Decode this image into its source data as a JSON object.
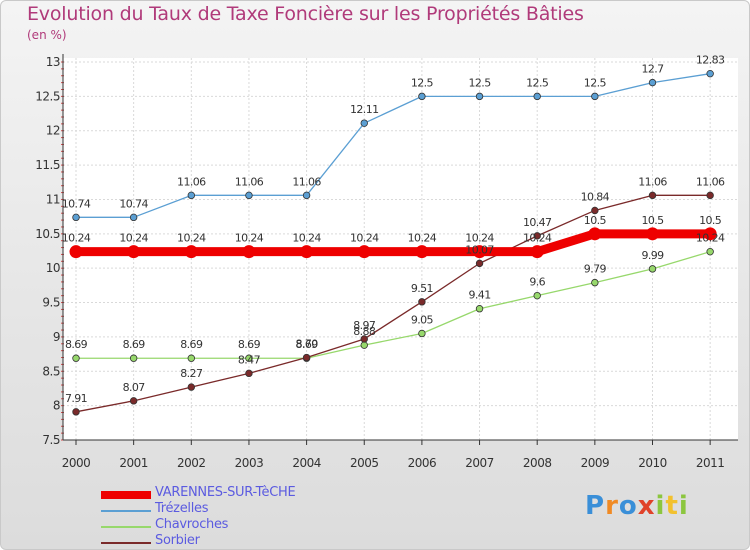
{
  "chart_data": {
    "type": "line",
    "title": "Evolution du Taux de Taxe Foncière sur les Propriétés Bâties",
    "subtitle": "(en %)",
    "xlabel": "",
    "ylabel": "",
    "x": [
      "2000",
      "2001",
      "2002",
      "2003",
      "2004",
      "2005",
      "2006",
      "2007",
      "2008",
      "2009",
      "2010",
      "2011"
    ],
    "ylim": [
      7.5,
      13
    ],
    "yticks": [
      "7.5",
      "8",
      "8.5",
      "9",
      "9.5",
      "10",
      "10.5",
      "11",
      "11.5",
      "12",
      "12.5",
      "13"
    ],
    "grid": true,
    "legend_position": "bottom-left",
    "series": [
      {
        "name": "VARENNES-SUR-TèCHE",
        "color": "#ee0000",
        "values": [
          10.24,
          10.24,
          10.24,
          10.24,
          10.24,
          10.24,
          10.24,
          10.24,
          10.24,
          10.5,
          10.5,
          10.5
        ],
        "labels": [
          "10.24",
          "10.24",
          "10.24",
          "10.24",
          "10.24",
          "10.24",
          "10.24",
          "10.24",
          "10.24",
          "10.5",
          "10.5",
          "10.5"
        ]
      },
      {
        "name": "Trézelles",
        "color": "#5b9fd3",
        "values": [
          10.74,
          10.74,
          11.06,
          11.06,
          11.06,
          12.11,
          12.5,
          12.5,
          12.5,
          12.5,
          12.7,
          12.83
        ],
        "labels": [
          "10.74",
          "10.74",
          "11.06",
          "11.06",
          "11.06",
          "12.11",
          "12.5",
          "12.5",
          "12.5",
          "12.5",
          "12.7",
          "12.83"
        ]
      },
      {
        "name": "Chavroches",
        "color": "#97d86c",
        "values": [
          8.69,
          8.69,
          8.69,
          8.69,
          8.69,
          8.88,
          9.05,
          9.41,
          9.6,
          9.79,
          9.99,
          10.24
        ],
        "labels": [
          "8.69",
          "8.69",
          "8.69",
          "8.69",
          "8.69",
          "8.88",
          "9.05",
          "9.41",
          "9.6",
          "9.79",
          "9.99",
          "10.24"
        ]
      },
      {
        "name": "Sorbier",
        "color": "#7a2a2a",
        "values": [
          7.91,
          8.07,
          8.27,
          8.47,
          8.7,
          8.97,
          9.51,
          10.07,
          10.47,
          10.84,
          11.06,
          11.06
        ],
        "labels": [
          "7.91",
          "8.07",
          "8.27",
          "8.47",
          "8.70",
          "8.97",
          "9.51",
          "10.07",
          "10.47",
          "10.84",
          "11.06",
          "11.06"
        ]
      }
    ]
  },
  "logo": {
    "text": "Proxiti",
    "letters": [
      "P",
      "r",
      "o",
      "x",
      "i",
      "t",
      "i"
    ]
  }
}
